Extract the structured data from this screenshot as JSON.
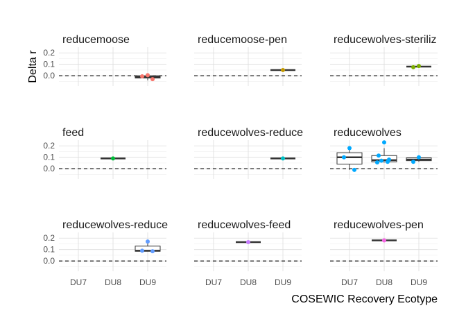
{
  "chart_data": {
    "type": "boxplot",
    "ylabel": "Delta r",
    "xlabel": "COSEWIC Recovery Ecotype",
    "categories": [
      "DU7",
      "DU8",
      "DU9"
    ],
    "ylim": [
      -0.09,
      0.25
    ],
    "yticks": [
      0.0,
      0.1,
      0.2
    ],
    "ytick_labels": [
      "0.0",
      "0.1",
      "0.2"
    ],
    "reference_line": 0.0,
    "facets": [
      {
        "title": "reducemoose",
        "boxes": [
          {
            "category": "DU9",
            "q1": -0.02,
            "median": -0.01,
            "q3": 0.0,
            "min": -0.04,
            "max": 0.01
          }
        ],
        "points": [
          {
            "category": "DU9",
            "value": 0.005,
            "color": "#f8766d"
          },
          {
            "category": "DU9",
            "value": -0.005,
            "color": "#f8766d"
          },
          {
            "category": "DU9",
            "value": -0.03,
            "color": "#f8766d"
          }
        ]
      },
      {
        "title": "reducemoose-pen",
        "boxes": [
          {
            "category": "DU9",
            "q1": 0.05,
            "median": 0.05,
            "q3": 0.05,
            "min": 0.05,
            "max": 0.05
          }
        ],
        "points": [
          {
            "category": "DU9",
            "value": 0.05,
            "color": "#c49a00"
          }
        ]
      },
      {
        "title": "reducewolves-steriliz",
        "boxes": [
          {
            "category": "DU9",
            "q1": 0.08,
            "median": 0.08,
            "q3": 0.08,
            "min": 0.08,
            "max": 0.08
          }
        ],
        "points": [
          {
            "category": "DU9",
            "value": 0.085,
            "color": "#7cae00"
          },
          {
            "category": "DU9",
            "value": 0.075,
            "color": "#7cae00"
          }
        ]
      },
      {
        "title": "feed",
        "boxes": [
          {
            "category": "DU8",
            "q1": 0.09,
            "median": 0.09,
            "q3": 0.09,
            "min": 0.09,
            "max": 0.09
          }
        ],
        "points": [
          {
            "category": "DU8",
            "value": 0.09,
            "color": "#00ba38"
          }
        ]
      },
      {
        "title": "reducewolves-reduce",
        "boxes": [
          {
            "category": "DU9",
            "q1": 0.09,
            "median": 0.09,
            "q3": 0.09,
            "min": 0.09,
            "max": 0.09
          }
        ],
        "points": [
          {
            "category": "DU9",
            "value": 0.09,
            "color": "#00bfc4"
          }
        ]
      },
      {
        "title": "reducewolves",
        "boxes": [
          {
            "category": "DU7",
            "q1": 0.04,
            "median": 0.1,
            "q3": 0.14,
            "min": -0.01,
            "max": 0.18
          },
          {
            "category": "DU8",
            "q1": 0.06,
            "median": 0.075,
            "q3": 0.115,
            "min": 0.055,
            "max": 0.18
          },
          {
            "category": "DU9",
            "q1": 0.07,
            "median": 0.08,
            "q3": 0.095,
            "min": 0.06,
            "max": 0.1
          }
        ],
        "points": [
          {
            "category": "DU7",
            "value": 0.18,
            "color": "#00a9ff"
          },
          {
            "category": "DU7",
            "value": 0.1,
            "color": "#00a9ff"
          },
          {
            "category": "DU7",
            "value": -0.01,
            "color": "#00a9ff"
          },
          {
            "category": "DU8",
            "value": 0.23,
            "color": "#00a9ff"
          },
          {
            "category": "DU8",
            "value": 0.115,
            "color": "#00a9ff"
          },
          {
            "category": "DU8",
            "value": 0.08,
            "color": "#00a9ff"
          },
          {
            "category": "DU8",
            "value": 0.07,
            "color": "#00a9ff"
          },
          {
            "category": "DU8",
            "value": 0.06,
            "color": "#00a9ff"
          },
          {
            "category": "DU8",
            "value": 0.055,
            "color": "#00a9ff"
          },
          {
            "category": "DU9",
            "value": 0.1,
            "color": "#00a9ff"
          },
          {
            "category": "DU9",
            "value": 0.06,
            "color": "#00a9ff"
          }
        ]
      },
      {
        "title": "reducewolves-reduce",
        "boxes": [
          {
            "category": "DU9",
            "q1": 0.085,
            "median": 0.09,
            "q3": 0.13,
            "min": 0.085,
            "max": 0.17
          }
        ],
        "points": [
          {
            "category": "DU9",
            "value": 0.17,
            "color": "#619cff"
          },
          {
            "category": "DU9",
            "value": 0.09,
            "color": "#619cff"
          },
          {
            "category": "DU9",
            "value": 0.085,
            "color": "#619cff"
          }
        ]
      },
      {
        "title": "reducewolves-feed",
        "boxes": [
          {
            "category": "DU8",
            "q1": 0.165,
            "median": 0.165,
            "q3": 0.165,
            "min": 0.165,
            "max": 0.165
          }
        ],
        "points": [
          {
            "category": "DU8",
            "value": 0.165,
            "color": "#c77cff"
          }
        ]
      },
      {
        "title": "reducewolves-pen",
        "boxes": [
          {
            "category": "DU8",
            "q1": 0.18,
            "median": 0.18,
            "q3": 0.18,
            "min": 0.18,
            "max": 0.18
          }
        ],
        "points": [
          {
            "category": "DU8",
            "value": 0.18,
            "color": "#f564e3"
          }
        ]
      }
    ]
  }
}
